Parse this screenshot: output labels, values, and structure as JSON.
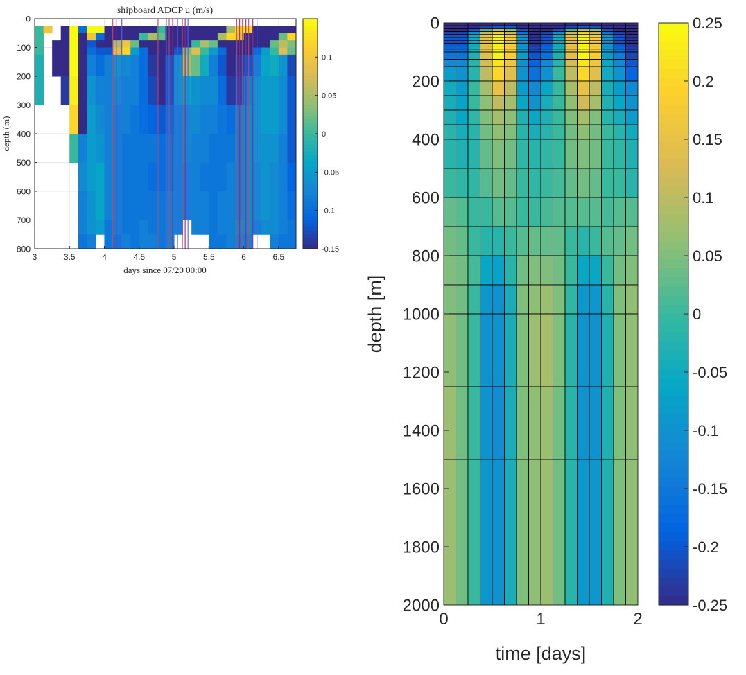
{
  "colormap": "parula",
  "parula_stops": [
    "#352a87",
    "#0363e1",
    "#1485d4",
    "#06a7c6",
    "#38b99e",
    "#92bf73",
    "#d9ba56",
    "#fcce2e",
    "#f9fb0e"
  ],
  "chart_data": [
    {
      "type": "heatmap",
      "title": "shipboard ADCP u (m/s)",
      "xlabel": "days since 07/20 00:00",
      "ylabel": "depth (m)",
      "xlim": [
        3,
        6.75
      ],
      "ylim": [
        0,
        800
      ],
      "y_reversed": true,
      "grid": true,
      "xticks": [
        "3",
        "3.5",
        "4",
        "4.5",
        "5",
        "5.5",
        "6",
        "6.5"
      ],
      "yticks": [
        "0",
        "100",
        "200",
        "300",
        "400",
        "500",
        "600",
        "700",
        "800"
      ],
      "clim": [
        -0.15,
        0.15
      ],
      "colorbar_ticks": [
        "0.1",
        "0.05",
        "0",
        "-0.05",
        "-0.1",
        "-0.15"
      ],
      "x_edges": [
        3,
        3.125,
        3.25,
        3.375,
        3.5,
        3.625,
        3.75,
        3.875,
        4,
        4.125,
        4.25,
        4.375,
        4.5,
        4.625,
        4.75,
        4.875,
        5,
        5.125,
        5.25,
        5.375,
        5.5,
        5.625,
        5.75,
        5.875,
        6,
        6.125,
        6.25,
        6.375,
        6.5,
        6.625,
        6.75
      ],
      "depth_edges": [
        25,
        50,
        75,
        100,
        125,
        200,
        300,
        400,
        500,
        600,
        700,
        750,
        800
      ],
      "values": [
        [
          0,
          0.1,
          null,
          -0.15,
          0.15,
          -0.1,
          0.15,
          0.15,
          -0.15,
          -0.15,
          -0.15,
          -0.15,
          -0.15,
          -0.15,
          0.0,
          -0.15,
          -0.15,
          -0.15,
          -0.15,
          -0.15,
          -0.15,
          -0.15,
          0.05,
          0.12,
          0.12,
          -0.15,
          -0.15,
          -0.15,
          -0.15,
          -0.15
        ],
        [
          0,
          null,
          null,
          -0.15,
          0.15,
          -0.15,
          0.1,
          -0.1,
          -0.15,
          -0.15,
          -0.15,
          -0.15,
          0.0,
          0.05,
          0.02,
          -0.15,
          -0.15,
          -0.15,
          -0.15,
          -0.15,
          -0.15,
          0.05,
          0.12,
          0.1,
          -0.15,
          -0.15,
          -0.15,
          -0.15,
          0.02,
          0.12
        ],
        [
          0,
          null,
          -0.15,
          -0.15,
          0.15,
          -0.15,
          -0.12,
          -0.15,
          -0.15,
          0.05,
          0.1,
          0.02,
          -0.15,
          -0.15,
          -0.15,
          -0.15,
          -0.15,
          -0.15,
          0.0,
          0.05,
          0.02,
          -0.15,
          -0.15,
          -0.15,
          -0.15,
          -0.15,
          -0.15,
          0.02,
          0.06,
          0.03
        ],
        [
          0,
          null,
          -0.15,
          -0.15,
          0.15,
          -0.15,
          -0.1,
          -0.12,
          -0.12,
          0.08,
          0.12,
          -0.05,
          -0.1,
          -0.15,
          -0.15,
          -0.15,
          -0.12,
          0.03,
          0.08,
          0.0,
          -0.05,
          -0.1,
          -0.15,
          -0.15,
          -0.15,
          -0.1,
          -0.05,
          0.0,
          0.08,
          0.02
        ],
        [
          -0.02,
          null,
          -0.15,
          -0.15,
          0.15,
          -0.15,
          -0.08,
          -0.1,
          -0.08,
          -0.06,
          -0.07,
          -0.08,
          -0.1,
          -0.14,
          -0.15,
          -0.12,
          -0.06,
          0.05,
          0.02,
          -0.03,
          -0.08,
          -0.12,
          -0.15,
          -0.14,
          -0.12,
          -0.08,
          -0.04,
          -0.03,
          -0.06,
          -0.13
        ],
        [
          -0.02,
          null,
          null,
          -0.14,
          0.14,
          -0.15,
          -0.06,
          -0.08,
          -0.08,
          -0.07,
          -0.08,
          -0.08,
          -0.1,
          -0.13,
          -0.15,
          -0.12,
          -0.06,
          -0.04,
          -0.06,
          -0.07,
          -0.07,
          -0.1,
          -0.14,
          -0.13,
          -0.08,
          -0.06,
          -0.05,
          -0.05,
          -0.07,
          -0.12
        ],
        [
          null,
          null,
          null,
          null,
          0.12,
          -0.15,
          -0.05,
          -0.07,
          -0.08,
          -0.08,
          -0.08,
          -0.09,
          -0.1,
          -0.11,
          -0.12,
          -0.1,
          -0.08,
          -0.07,
          -0.07,
          -0.08,
          -0.08,
          -0.09,
          -0.1,
          -0.08,
          -0.07,
          -0.06,
          -0.05,
          -0.05,
          -0.07,
          -0.12
        ],
        [
          null,
          null,
          null,
          null,
          0.0,
          -0.08,
          -0.05,
          -0.06,
          -0.08,
          -0.08,
          -0.09,
          -0.09,
          -0.09,
          -0.09,
          -0.1,
          -0.09,
          -0.08,
          -0.07,
          -0.08,
          -0.08,
          -0.09,
          -0.09,
          -0.09,
          -0.08,
          -0.07,
          -0.06,
          -0.06,
          -0.06,
          -0.08,
          -0.12
        ],
        [
          null,
          null,
          null,
          null,
          null,
          -0.07,
          -0.05,
          -0.04,
          -0.08,
          -0.08,
          -0.09,
          -0.09,
          -0.09,
          -0.1,
          -0.1,
          -0.09,
          -0.08,
          -0.08,
          -0.08,
          -0.09,
          -0.09,
          -0.09,
          -0.08,
          -0.08,
          -0.07,
          -0.07,
          -0.06,
          -0.07,
          -0.08,
          -0.11
        ],
        [
          null,
          null,
          null,
          null,
          null,
          -0.08,
          -0.06,
          -0.04,
          -0.08,
          -0.08,
          -0.09,
          -0.09,
          -0.09,
          -0.09,
          -0.09,
          -0.08,
          -0.08,
          -0.08,
          -0.08,
          -0.08,
          -0.09,
          -0.08,
          -0.08,
          -0.08,
          -0.07,
          -0.07,
          -0.06,
          -0.07,
          -0.08,
          -0.1
        ],
        [
          null,
          null,
          null,
          null,
          null,
          -0.08,
          -0.06,
          -0.05,
          -0.09,
          -0.08,
          -0.09,
          -0.09,
          -0.08,
          -0.09,
          -0.09,
          -0.08,
          -0.08,
          null,
          -0.08,
          -0.08,
          -0.09,
          -0.08,
          -0.08,
          -0.07,
          -0.07,
          -0.08,
          -0.07,
          -0.07,
          -0.08,
          -0.09
        ],
        [
          null,
          null,
          null,
          null,
          null,
          -0.09,
          -0.08,
          null,
          -0.09,
          -0.09,
          -0.08,
          -0.09,
          -0.08,
          -0.08,
          -0.09,
          -0.08,
          null,
          null,
          null,
          null,
          -0.09,
          -0.09,
          -0.08,
          -0.08,
          -0.08,
          null,
          null,
          -0.08,
          -0.09,
          -0.09
        ]
      ],
      "vertical_lines": [
        {
          "x": 4.12,
          "color": "#d2405a"
        },
        {
          "x": 4.17,
          "color": "#8a2a8a"
        },
        {
          "x": 4.25,
          "color": "#5a5ae6"
        },
        {
          "x": 4.77,
          "color": "#d2405a"
        },
        {
          "x": 4.89,
          "color": "#5a5ae6"
        },
        {
          "x": 4.93,
          "color": "#d2405a"
        },
        {
          "x": 4.98,
          "color": "#8a2a8a"
        },
        {
          "x": 5.05,
          "color": "#5a5ae6"
        },
        {
          "x": 5.12,
          "color": "#d2405a"
        },
        {
          "x": 5.16,
          "color": "#8a2a8a"
        },
        {
          "x": 5.2,
          "color": "#5a5ae6"
        },
        {
          "x": 5.9,
          "color": "#d2405a"
        },
        {
          "x": 5.94,
          "color": "#8a2a8a"
        },
        {
          "x": 5.98,
          "color": "#d2405a"
        },
        {
          "x": 6.03,
          "color": "#8a2a8a"
        },
        {
          "x": 6.07,
          "color": "#d2405a"
        },
        {
          "x": 6.13,
          "color": "#8a2a8a"
        },
        {
          "x": 6.19,
          "color": "#5a5ae6"
        }
      ]
    },
    {
      "type": "heatmap",
      "title": "",
      "xlabel": "time [days]",
      "ylabel": "depth [m]",
      "xlim": [
        0,
        2
      ],
      "ylim": [
        0,
        2000
      ],
      "y_reversed": true,
      "cell_edges": true,
      "xticks": [
        "0",
        "1",
        "2"
      ],
      "yticks": [
        "0",
        "200",
        "400",
        "600",
        "800",
        "1000",
        "1200",
        "1400",
        "1600",
        "1800",
        "2000"
      ],
      "clim": [
        -0.25,
        0.25
      ],
      "colorbar_ticks": [
        "0.25",
        "0.2",
        "0.15",
        "0.1",
        "0.05",
        "0",
        "-0.05",
        "-0.1",
        "-0.15",
        "-0.2",
        "-0.25"
      ],
      "x_edges": [
        0,
        0.125,
        0.25,
        0.375,
        0.5,
        0.625,
        0.75,
        0.875,
        1,
        1.125,
        1.25,
        1.375,
        1.5,
        1.625,
        1.75,
        1.875,
        2
      ],
      "depth_edges": [
        0,
        10,
        20,
        30,
        40,
        50,
        60,
        70,
        80,
        90,
        100,
        125,
        150,
        200,
        250,
        300,
        350,
        400,
        500,
        600,
        700,
        800,
        900,
        1000,
        1250,
        1500,
        2000
      ],
      "values": [
        [
          -0.25,
          -0.25,
          -0.25,
          -0.25,
          -0.25,
          -0.25,
          -0.25,
          -0.25,
          -0.25,
          -0.25,
          -0.25,
          -0.25,
          -0.25,
          -0.25,
          -0.25,
          -0.25
        ],
        [
          -0.25,
          -0.25,
          -0.25,
          -0.22,
          -0.2,
          -0.2,
          -0.25,
          -0.25,
          -0.25,
          -0.25,
          -0.22,
          -0.2,
          -0.2,
          -0.25,
          -0.25,
          -0.25
        ],
        [
          -0.25,
          -0.25,
          -0.2,
          0.0,
          0.1,
          0.05,
          -0.2,
          -0.25,
          -0.25,
          -0.2,
          0.0,
          0.1,
          0.05,
          -0.2,
          -0.25,
          -0.25
        ],
        [
          -0.22,
          -0.22,
          -0.1,
          0.12,
          0.2,
          0.12,
          -0.15,
          -0.25,
          -0.22,
          -0.1,
          0.12,
          0.2,
          0.12,
          -0.15,
          -0.22,
          -0.25
        ],
        [
          -0.2,
          -0.2,
          -0.05,
          0.15,
          0.24,
          0.18,
          -0.1,
          -0.24,
          -0.2,
          -0.05,
          0.15,
          0.24,
          0.18,
          -0.1,
          -0.2,
          -0.24
        ],
        [
          -0.2,
          -0.2,
          -0.05,
          0.15,
          0.24,
          0.18,
          -0.1,
          -0.24,
          -0.2,
          -0.05,
          0.15,
          0.24,
          0.18,
          -0.1,
          -0.2,
          -0.24
        ],
        [
          -0.2,
          -0.2,
          -0.05,
          0.15,
          0.24,
          0.18,
          -0.1,
          -0.24,
          -0.2,
          -0.05,
          0.15,
          0.24,
          0.18,
          -0.1,
          -0.2,
          -0.24
        ],
        [
          -0.2,
          -0.2,
          -0.05,
          0.15,
          0.24,
          0.18,
          -0.1,
          -0.24,
          -0.2,
          -0.05,
          0.15,
          0.24,
          0.18,
          -0.1,
          -0.2,
          -0.24
        ],
        [
          -0.18,
          -0.18,
          -0.04,
          0.15,
          0.24,
          0.18,
          -0.1,
          -0.22,
          -0.18,
          -0.04,
          0.15,
          0.24,
          0.18,
          -0.1,
          -0.18,
          -0.23
        ],
        [
          -0.16,
          -0.16,
          -0.04,
          0.15,
          0.24,
          0.18,
          -0.09,
          -0.21,
          -0.17,
          -0.04,
          0.15,
          0.24,
          0.18,
          -0.09,
          -0.16,
          -0.22
        ],
        [
          -0.15,
          -0.15,
          -0.03,
          0.14,
          0.24,
          0.18,
          -0.08,
          -0.2,
          -0.16,
          -0.03,
          0.14,
          0.24,
          0.18,
          -0.08,
          -0.14,
          -0.22
        ],
        [
          -0.12,
          -0.12,
          -0.02,
          0.12,
          0.22,
          0.16,
          -0.1,
          -0.18,
          -0.12,
          -0.02,
          0.12,
          0.22,
          0.16,
          -0.06,
          -0.12,
          -0.2
        ],
        [
          -0.08,
          -0.1,
          -0.02,
          0.1,
          0.2,
          0.14,
          -0.1,
          -0.16,
          -0.1,
          0.0,
          0.1,
          0.2,
          0.14,
          -0.05,
          -0.1,
          -0.18
        ],
        [
          -0.05,
          -0.08,
          0.0,
          0.08,
          0.15,
          0.1,
          -0.08,
          -0.12,
          -0.06,
          0.0,
          0.08,
          0.15,
          0.1,
          -0.04,
          -0.08,
          -0.12
        ],
        [
          -0.04,
          -0.07,
          0.0,
          0.06,
          0.1,
          0.08,
          -0.06,
          -0.1,
          -0.04,
          0.0,
          0.06,
          0.12,
          0.08,
          -0.03,
          -0.06,
          -0.1
        ],
        [
          -0.03,
          -0.06,
          -0.01,
          0.05,
          0.08,
          0.06,
          -0.03,
          -0.06,
          -0.03,
          0.0,
          0.05,
          0.08,
          0.05,
          -0.02,
          -0.04,
          -0.08
        ],
        [
          -0.02,
          -0.04,
          -0.02,
          0.04,
          0.06,
          0.05,
          -0.02,
          -0.04,
          -0.02,
          0.0,
          0.04,
          0.06,
          0.04,
          0.0,
          -0.02,
          -0.05
        ],
        [
          -0.02,
          -0.03,
          -0.02,
          0.03,
          0.05,
          0.04,
          -0.01,
          -0.02,
          -0.01,
          0.0,
          0.04,
          0.05,
          0.04,
          0.0,
          -0.01,
          -0.03
        ],
        [
          0.0,
          -0.01,
          -0.01,
          0.02,
          0.04,
          0.03,
          0.0,
          -0.01,
          0.0,
          0.01,
          0.03,
          0.04,
          0.03,
          0.0,
          0.0,
          -0.02
        ],
        [
          0.03,
          0.02,
          0.0,
          0.0,
          0.02,
          0.02,
          0.0,
          0.0,
          0.01,
          0.02,
          0.02,
          0.02,
          0.02,
          0.01,
          0.02,
          0.02
        ],
        [
          0.04,
          0.03,
          0.0,
          -0.02,
          -0.02,
          0.0,
          0.02,
          0.03,
          0.03,
          0.03,
          0.0,
          -0.02,
          0.0,
          0.02,
          0.03,
          0.04
        ],
        [
          0.05,
          0.04,
          0.01,
          -0.06,
          -0.07,
          -0.02,
          0.04,
          0.05,
          0.05,
          0.04,
          0.0,
          -0.06,
          -0.06,
          0.0,
          0.04,
          0.05
        ],
        [
          0.05,
          0.04,
          0.0,
          -0.09,
          -0.1,
          -0.04,
          0.05,
          0.06,
          0.07,
          0.05,
          -0.01,
          -0.09,
          -0.09,
          -0.02,
          0.05,
          0.06
        ],
        [
          0.06,
          0.04,
          0.0,
          -0.1,
          -0.1,
          -0.04,
          0.05,
          0.07,
          0.08,
          0.05,
          -0.02,
          -0.1,
          -0.1,
          -0.03,
          0.05,
          0.06
        ],
        [
          0.07,
          0.04,
          0.0,
          -0.1,
          -0.11,
          -0.04,
          0.05,
          0.06,
          0.07,
          0.04,
          -0.02,
          -0.1,
          -0.1,
          -0.03,
          0.05,
          0.06
        ],
        [
          0.07,
          0.04,
          0.0,
          -0.09,
          -0.1,
          -0.04,
          0.05,
          0.06,
          0.07,
          0.04,
          -0.02,
          -0.09,
          -0.09,
          -0.03,
          0.05,
          0.06
        ]
      ]
    }
  ]
}
